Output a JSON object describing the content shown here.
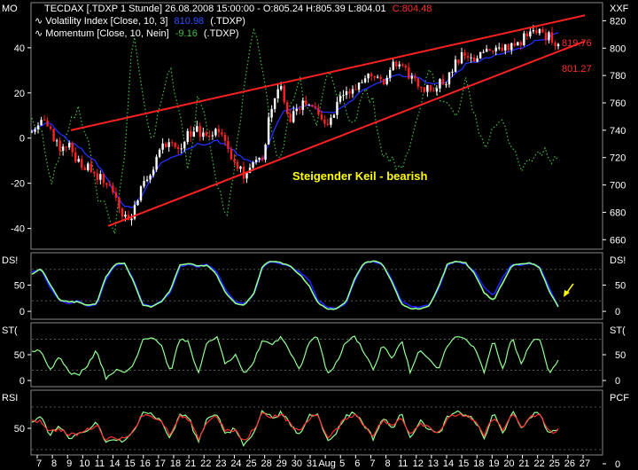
{
  "header": {
    "line1": "TECDAX [.TDXP 1 Stunde] 26.08.2008 15:00:00 - O:805.24 H:805.39 L:804.01",
    "line1_close": "C:804.48",
    "line2_prefix": "Volatility Index [Close, 10, 3]",
    "line2_value": "810.98",
    "line2_suffix": "(.TDXP)",
    "line3_prefix": "Momentum [Close, 10, Nein]",
    "line3_value": "-9.16",
    "line3_suffix": "(.TDXP)"
  },
  "panel_labels": {
    "main_left": "MO",
    "main_right": "XXF",
    "p2_left": "DS!",
    "p2_right": "DS!",
    "p3_left": "ST(",
    "p3_right": "ST(",
    "p4_left": "RSI",
    "p4_right": "PCF"
  },
  "colors": {
    "background": "#000000",
    "up": "#ffffff",
    "down": "#ff2020",
    "wedge": "#ff2020",
    "volatility": "#2030ff",
    "momentum": "#40c040",
    "osc_green": "#90ff90",
    "osc_blue": "#2020ff",
    "annotation": "#ffff00",
    "grid": "#555555"
  },
  "chart_data": [
    {
      "panel": "price",
      "type": "candlestick",
      "title": "TECDAX [.TDXP 1 Stunde]",
      "annotation": "Steigender Keil - bearish",
      "price_axis": {
        "ticks": [
          660,
          680,
          700,
          720,
          740,
          760,
          780,
          800,
          820
        ],
        "ylim": [
          655,
          830
        ]
      },
      "momentum_axis": {
        "ticks": [
          -40,
          -20,
          0,
          20,
          40
        ],
        "ylim": [
          -48,
          58
        ]
      },
      "x_tick_labels": [
        "7",
        "8",
        "9",
        "10",
        "11",
        "14",
        "15",
        "16",
        "17",
        "18",
        "21",
        "22",
        "23",
        "24",
        "25",
        "28",
        "29",
        "30",
        "31",
        "Aug",
        "5",
        "6",
        "7",
        "8",
        "11",
        "12",
        "13",
        "14",
        "15",
        "18",
        "19",
        "20",
        "21",
        "22",
        "25",
        "26",
        "27"
      ],
      "price_waypoints": [
        735,
        745,
        740,
        726,
        728,
        718,
        712,
        708,
        700,
        690,
        676,
        680,
        700,
        712,
        728,
        734,
        728,
        738,
        740,
        734,
        745,
        728,
        716,
        708,
        718,
        722,
        760,
        770,
        748,
        756,
        762,
        752,
        742,
        760,
        765,
        772,
        778,
        780,
        772,
        788,
        784,
        780,
        772,
        770,
        774,
        778,
        790,
        796,
        792,
        798,
        796,
        800,
        803,
        806,
        810,
        812,
        808,
        804
      ],
      "volatility_waypoints": [
        740,
        744,
        745,
        738,
        732,
        728,
        722,
        716,
        706,
        694,
        684,
        684,
        694,
        706,
        716,
        720,
        722,
        726,
        730,
        730,
        732,
        730,
        724,
        718,
        716,
        718,
        736,
        752,
        756,
        756,
        758,
        756,
        752,
        754,
        758,
        764,
        770,
        774,
        776,
        780,
        780,
        780,
        778,
        774,
        774,
        776,
        782,
        788,
        790,
        792,
        794,
        796,
        798,
        800,
        804,
        806,
        808,
        811
      ],
      "momentum_waypoints": [
        8,
        2,
        -20,
        -10,
        5,
        14,
        0,
        -25,
        -30,
        -42,
        -10,
        50,
        20,
        -5,
        18,
        30,
        10,
        -15,
        20,
        5,
        -20,
        -35,
        -10,
        25,
        50,
        30,
        0,
        -10,
        15,
        25,
        10,
        8,
        30,
        20,
        12,
        5,
        22,
        15,
        -8,
        -10,
        -15,
        0,
        10,
        30,
        20,
        15,
        8,
        25,
        10,
        -5,
        5,
        10,
        -5,
        -15,
        -10,
        -5,
        -8,
        -9
      ],
      "wedge_upper": {
        "start": 740,
        "end": 824,
        "label": "819.76"
      },
      "wedge_lower": {
        "start": 670,
        "end": 805,
        "label": "801.27"
      }
    },
    {
      "panel": "DS",
      "type": "line",
      "ticks": [
        0,
        50
      ],
      "ylim": [
        -10,
        105
      ],
      "reference_lines": [
        80,
        20
      ],
      "series": [
        {
          "color": "#2020ff",
          "values": [
            75,
            80,
            45,
            20,
            15,
            20,
            10,
            12,
            60,
            88,
            92,
            60,
            15,
            10,
            20,
            35,
            85,
            90,
            85,
            90,
            75,
            40,
            18,
            15,
            30,
            85,
            95,
            90,
            85,
            75,
            60,
            20,
            8,
            5,
            15,
            60,
            92,
            95,
            88,
            60,
            20,
            10,
            8,
            12,
            40,
            88,
            95,
            90,
            75,
            45,
            30,
            65,
            90,
            88,
            92,
            85,
            45,
            10
          ]
        },
        {
          "color": "#90ff90",
          "values": [
            70,
            82,
            50,
            22,
            18,
            18,
            12,
            15,
            65,
            90,
            92,
            58,
            12,
            8,
            18,
            40,
            88,
            92,
            86,
            88,
            70,
            35,
            15,
            12,
            32,
            88,
            96,
            92,
            86,
            70,
            50,
            15,
            5,
            4,
            18,
            65,
            93,
            96,
            90,
            55,
            15,
            5,
            5,
            10,
            45,
            90,
            96,
            92,
            70,
            35,
            20,
            55,
            88,
            90,
            93,
            82,
            40,
            8
          ]
        }
      ]
    },
    {
      "panel": "ST",
      "type": "line",
      "ticks": [
        0,
        50
      ],
      "ylim": [
        -5,
        105
      ],
      "reference_lines": [
        80,
        20
      ],
      "series": [
        {
          "color": "#90ff90",
          "values": [
            55,
            60,
            20,
            50,
            15,
            10,
            30,
            60,
            5,
            20,
            15,
            30,
            80,
            85,
            70,
            15,
            80,
            75,
            10,
            75,
            85,
            30,
            50,
            10,
            35,
            80,
            70,
            85,
            55,
            20,
            75,
            85,
            10,
            35,
            75,
            85,
            55,
            20,
            70,
            40,
            80,
            15,
            60,
            40,
            20,
            70,
            85,
            80,
            60,
            15,
            80,
            20,
            85,
            30,
            75,
            80,
            15,
            40
          ]
        }
      ]
    },
    {
      "panel": "RSI",
      "type": "line",
      "ticks": [
        50
      ],
      "right_ticks": [
        0
      ],
      "ylim": [
        15,
        100
      ],
      "reference_lines": [
        80,
        20
      ],
      "series": [
        {
          "color": "#90ff90",
          "values": [
            60,
            65,
            40,
            55,
            35,
            40,
            45,
            60,
            30,
            35,
            30,
            45,
            75,
            70,
            60,
            35,
            70,
            65,
            30,
            65,
            72,
            40,
            50,
            25,
            45,
            75,
            65,
            72,
            55,
            40,
            68,
            72,
            30,
            45,
            68,
            72,
            55,
            35,
            65,
            50,
            70,
            38,
            60,
            50,
            40,
            65,
            72,
            70,
            60,
            35,
            72,
            42,
            75,
            48,
            68,
            72,
            40,
            50
          ]
        },
        {
          "color": "#ff3030",
          "values": [
            62,
            60,
            45,
            50,
            40,
            42,
            48,
            55,
            35,
            38,
            34,
            48,
            70,
            68,
            58,
            40,
            66,
            62,
            35,
            60,
            68,
            45,
            48,
            30,
            48,
            72,
            66,
            70,
            56,
            44,
            64,
            70,
            35,
            48,
            65,
            70,
            54,
            40,
            62,
            52,
            66,
            42,
            58,
            52,
            44,
            62,
            70,
            68,
            58,
            40,
            68,
            46,
            72,
            50,
            66,
            70,
            44,
            48
          ]
        }
      ]
    }
  ]
}
